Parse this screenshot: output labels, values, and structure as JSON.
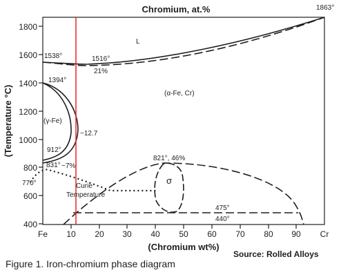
{
  "diagram": {
    "top_title": "Chromium, at.%",
    "x_axis_label": "(Chromium wt%)",
    "y_axis_label": "(Temperature °C)",
    "x_tick_labels": [
      "Fe",
      "10",
      "20",
      "30",
      "40",
      "50",
      "60",
      "70",
      "80",
      "90",
      "Cr"
    ],
    "y_tick_labels": [
      "400",
      "600",
      "800",
      "1000",
      "1200",
      "1400",
      "1600",
      "1800"
    ],
    "region_labels": {
      "liquid": "L",
      "alpha": "(α-Fe, Cr)",
      "gamma": "(γ-Fe)",
      "sigma": "σ"
    },
    "point_labels": {
      "t1863": "1863°",
      "t1538": "1538°",
      "t1516": "1516°",
      "c21": "21%",
      "t1394": "1394°",
      "c12_7": "~12.7",
      "t912": "912°",
      "t831": "831°",
      "c7": "~7%",
      "t770": "770°",
      "t821": "821°, 46%",
      "t475": "475°",
      "t440": "440°"
    },
    "curie_label_line1": "Curie",
    "curie_label_line2": "Temperature",
    "source": "Source: Rolled Alloys",
    "colors": {
      "marker_line": "#e8232a",
      "ink": "#1e1e1e"
    }
  },
  "caption": "Figure 1. Iron-chromium phase diagram"
}
